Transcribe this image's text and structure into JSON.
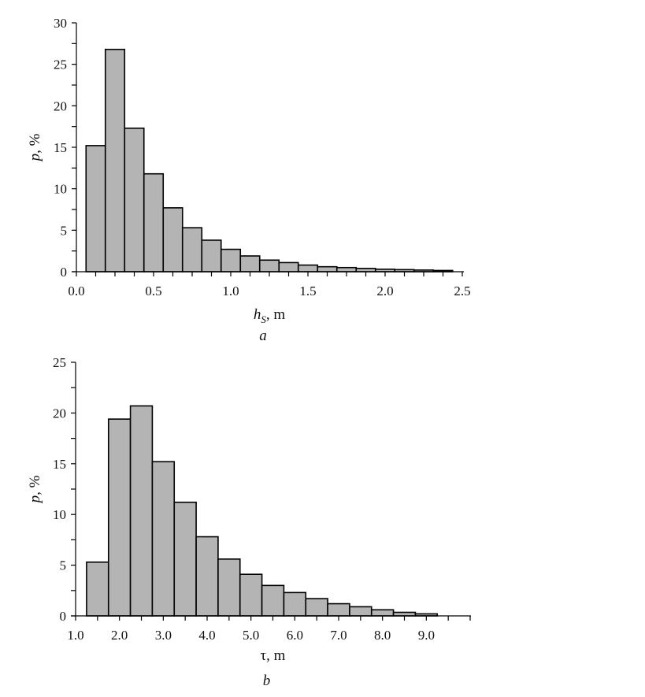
{
  "chart_data": [
    {
      "type": "bar",
      "panel_label": "a",
      "xlabel_main": "h",
      "xlabel_sub": "S",
      "xlabel_unit": ", m",
      "ylabel_main": "p",
      "ylabel_unit": ", %",
      "xlim": [
        0.0,
        2.5
      ],
      "ylim": [
        0,
        30
      ],
      "xticks": [
        "0.0",
        "0.5",
        "1.0",
        "1.5",
        "2.0",
        "2.5"
      ],
      "yticks": [
        "0",
        "5",
        "10",
        "15",
        "20",
        "25",
        "30"
      ],
      "bin_start": 0.0625,
      "bin_width": 0.125,
      "values": [
        15.2,
        26.8,
        17.3,
        11.8,
        7.7,
        5.3,
        3.8,
        2.7,
        1.9,
        1.4,
        1.1,
        0.8,
        0.6,
        0.5,
        0.4,
        0.3,
        0.25,
        0.2,
        0.15
      ],
      "bar_color": "#b4b4b4",
      "grid": false
    },
    {
      "type": "bar",
      "panel_label": "b",
      "xlabel_main": "τ",
      "xlabel_unit": ", m",
      "ylabel_main": "p",
      "ylabel_unit": ", %",
      "xlim": [
        1.0,
        10.0
      ],
      "ylim": [
        0,
        25
      ],
      "xticks": [
        "1.0",
        "2.0",
        "3.0",
        "4.0",
        "5.0",
        "6.0",
        "7.0",
        "8.0",
        "9.0"
      ],
      "yticks": [
        "0",
        "5",
        "10",
        "15",
        "20",
        "25"
      ],
      "bin_start": 1.25,
      "bin_width": 0.5,
      "values": [
        5.3,
        19.4,
        20.7,
        15.2,
        11.2,
        7.8,
        5.6,
        4.1,
        3.0,
        2.3,
        1.7,
        1.2,
        0.9,
        0.6,
        0.35,
        0.2
      ],
      "bar_color": "#b4b4b4",
      "grid": false
    }
  ]
}
